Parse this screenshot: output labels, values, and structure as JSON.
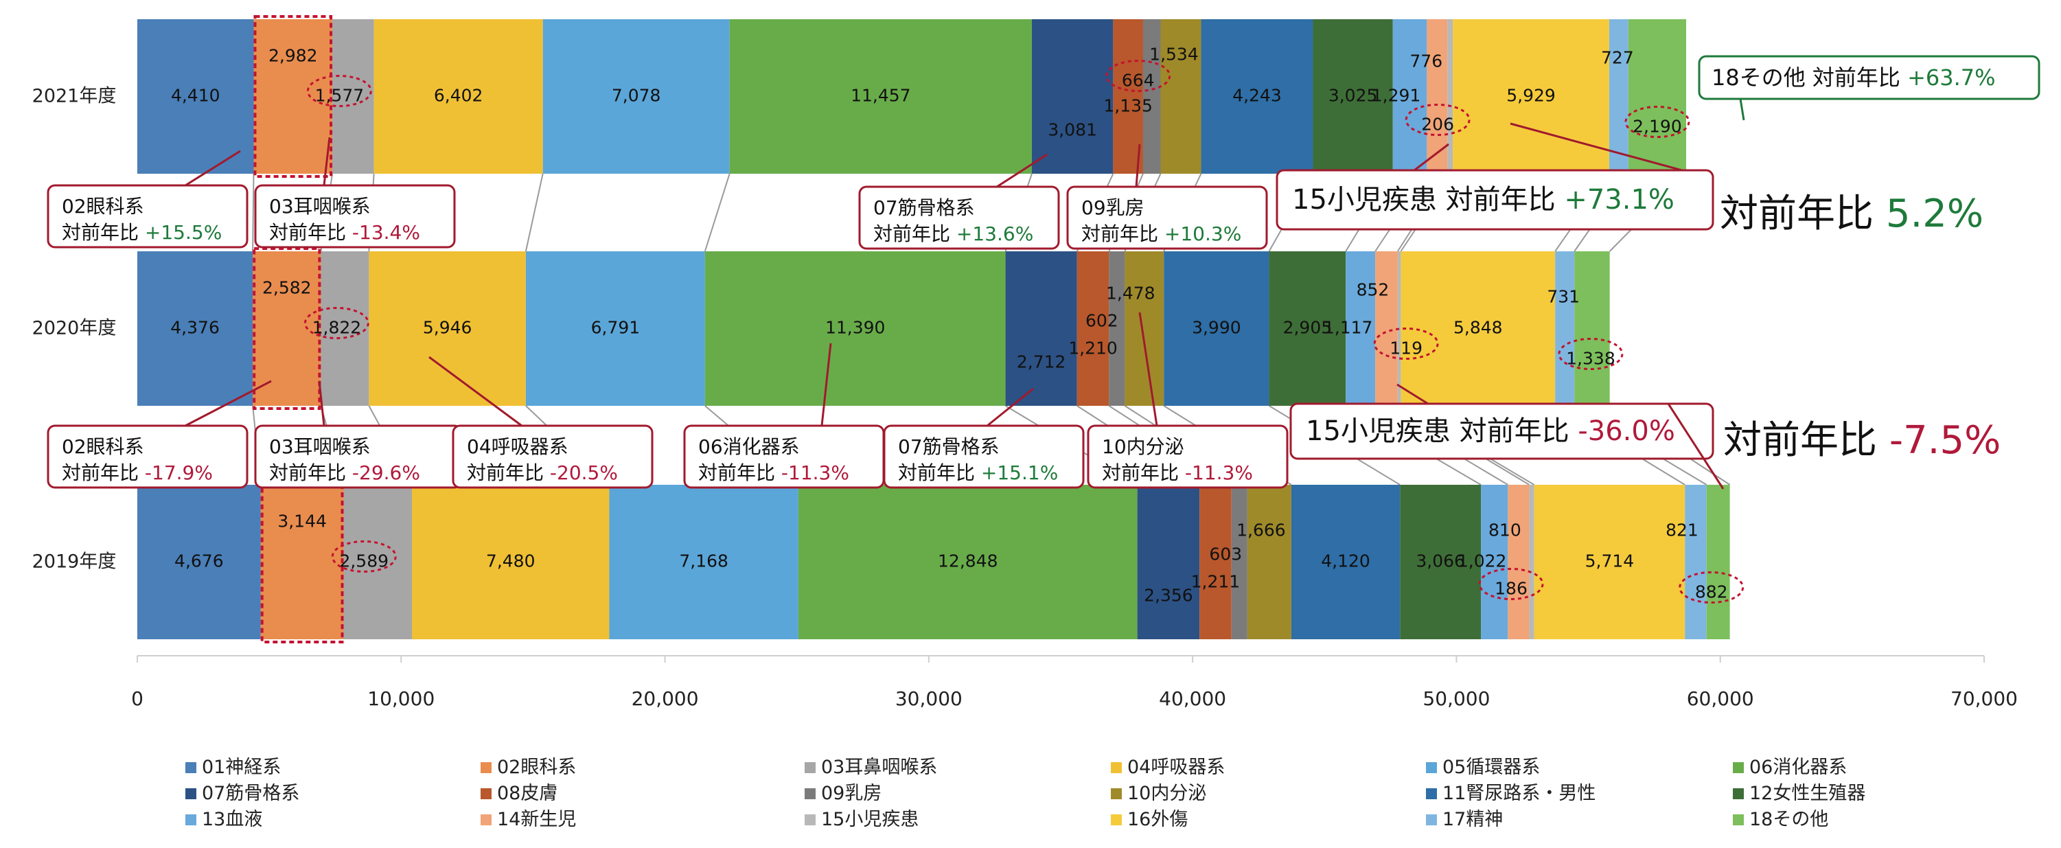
{
  "chart_data": {
    "type": "bar",
    "orientation": "horizontal",
    "stacked": true,
    "categories": [
      "2021年度",
      "2020年度",
      "2019年度"
    ],
    "xlim": [
      0,
      70000
    ],
    "x_ticks": [
      0,
      10000,
      20000,
      30000,
      40000,
      50000,
      60000,
      70000
    ],
    "x_tick_labels": [
      "0",
      "10,000",
      "20,000",
      "30,000",
      "40,000",
      "50,000",
      "60,000",
      "70,000"
    ],
    "grid": false,
    "legend_position": "bottom",
    "series": [
      {
        "name": "01神経系",
        "color": "#4a7fb8",
        "values": [
          4410,
          4376,
          4676
        ],
        "labels": [
          "4,410",
          "4,376",
          "4,676"
        ]
      },
      {
        "name": "02眼科系",
        "color": "#e98d4f",
        "values": [
          2982,
          2582,
          3144
        ],
        "labels": [
          "2,982",
          "2,582",
          "3,144"
        ]
      },
      {
        "name": "03耳鼻咽喉系",
        "color": "#a6a6a6",
        "values": [
          1577,
          1822,
          2589
        ],
        "labels": [
          "1,577",
          "1,822",
          "2,589"
        ]
      },
      {
        "name": "04呼吸器系",
        "color": "#f0c034",
        "values": [
          6402,
          5946,
          7480
        ],
        "labels": [
          "6,402",
          "5,946",
          "7,480"
        ]
      },
      {
        "name": "05循環器系",
        "color": "#5ba6d8",
        "values": [
          7078,
          6791,
          7168
        ],
        "labels": [
          "7,078",
          "6,791",
          "7,168"
        ]
      },
      {
        "name": "06消化器系",
        "color": "#68ac4a",
        "values": [
          11457,
          11390,
          12848
        ],
        "labels": [
          "11,457",
          "11,390",
          "12,848"
        ]
      },
      {
        "name": "07筋骨格系",
        "color": "#2c5184",
        "values": [
          3081,
          2712,
          2356
        ],
        "labels": [
          "3,081",
          "2,712",
          "2,356"
        ]
      },
      {
        "name": "08皮膚",
        "color": "#b8582c",
        "values": [
          1135,
          1210,
          1211
        ],
        "labels": [
          "1,135",
          "1,210",
          "1,211"
        ]
      },
      {
        "name": "09乳房",
        "color": "#7b7b7b",
        "values": [
          664,
          602,
          603
        ],
        "labels": [
          "664",
          "602",
          "603"
        ]
      },
      {
        "name": "10内分泌",
        "color": "#9f8a2a",
        "values": [
          1534,
          1478,
          1666
        ],
        "labels": [
          "1,534",
          "1,478",
          "1,666"
        ]
      },
      {
        "name": "11腎尿路系・男性",
        "color": "#2f6ea6",
        "values": [
          4243,
          3990,
          4120
        ],
        "labels": [
          "4,243",
          "3,990",
          "4,120"
        ]
      },
      {
        "name": "12女性生殖器",
        "color": "#3e6e37",
        "values": [
          3025,
          2905,
          3066
        ],
        "labels": [
          "3,025",
          "2,905",
          "3,066"
        ]
      },
      {
        "name": "13血液",
        "color": "#6aa9db",
        "values": [
          1291,
          1117,
          1022
        ],
        "labels": [
          "1,291",
          "1,117",
          "1,022"
        ]
      },
      {
        "name": "14新生児",
        "color": "#f1a477",
        "values": [
          776,
          852,
          810
        ],
        "labels": [
          "776",
          "852",
          "810"
        ]
      },
      {
        "name": "15小児疾患",
        "color": "#b8b8b8",
        "values": [
          206,
          119,
          186
        ],
        "labels": [
          "206",
          "119",
          "186"
        ]
      },
      {
        "name": "16外傷",
        "color": "#f5cb3c",
        "values": [
          5929,
          5848,
          5714
        ],
        "labels": [
          "5,929",
          "5,848",
          "5,714"
        ]
      },
      {
        "name": "17精神",
        "color": "#7fb6e0",
        "values": [
          727,
          731,
          821
        ],
        "labels": [
          "727",
          "731",
          "821"
        ]
      },
      {
        "name": "18その他",
        "color": "#7cbf5c",
        "values": [
          2190,
          1338,
          882
        ],
        "labels": [
          "2,190",
          "1,338",
          "882"
        ]
      }
    ],
    "annotations": {
      "2021": [
        {
          "name": "02眼科系",
          "prefix": "対前年比",
          "value": "+15.5%",
          "color": "#1e7a3a"
        },
        {
          "name": "03耳咽喉系",
          "prefix": "対前年比",
          "value": "-13.4%",
          "color": "#b0193a"
        },
        {
          "name": "07筋骨格系",
          "prefix": "対前年比",
          "value": "+13.6%",
          "color": "#1e7a3a"
        },
        {
          "name": "09乳房",
          "prefix": "対前年比",
          "value": "+10.3%",
          "color": "#1e7a3a"
        },
        {
          "name": "15小児疾患",
          "prefix": "対前年比",
          "value": "+73.1%",
          "color": "#1e7a3a"
        },
        {
          "name": "18その他",
          "prefix": "対前年比",
          "value": "+63.7%",
          "color": "#1e7a3a"
        }
      ],
      "2020": [
        {
          "name": "02眼科系",
          "prefix": "対前年比",
          "value": "-17.9%",
          "color": "#b0193a"
        },
        {
          "name": "03耳咽喉系",
          "prefix": "対前年比",
          "value": "-29.6%",
          "color": "#b0193a"
        },
        {
          "name": "04呼吸器系",
          "prefix": "対前年比",
          "value": "-20.5%",
          "color": "#b0193a"
        },
        {
          "name": "06消化器系",
          "prefix": "対前年比",
          "value": "-11.3%",
          "color": "#b0193a"
        },
        {
          "name": "07筋骨格系",
          "prefix": "対前年比",
          "value": "+15.1%",
          "color": "#1e7a3a"
        },
        {
          "name": "10内分泌",
          "prefix": "対前年比",
          "value": "-11.3%",
          "color": "#b0193a"
        },
        {
          "name": "15小児疾患",
          "prefix": "対前年比",
          "value": "-36.0%",
          "color": "#b0193a"
        }
      ]
    },
    "total_change": [
      {
        "label": "対前年比",
        "value": "5.2%",
        "color": "#1e7a3a"
      },
      {
        "label": "対前年比",
        "value": "-7.5%",
        "color": "#b0193a"
      }
    ]
  }
}
